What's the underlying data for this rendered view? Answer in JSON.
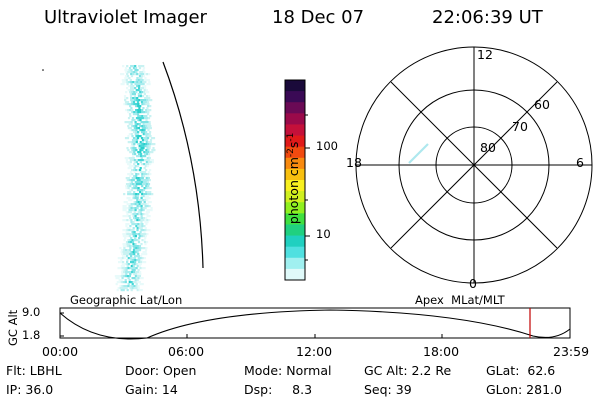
{
  "header": {
    "instrument": "Ultraviolet Imager",
    "date": "18 Dec 07",
    "time": "22:06:39 UT"
  },
  "geo_panel": {
    "label": "Geographic Lat/Lon"
  },
  "colorbar": {
    "unit_label_base": "photon cm",
    "unit_sup_1": "-2",
    "unit_mid": "s",
    "unit_sup_2": "-1",
    "ticks": [
      "100",
      "10"
    ],
    "colors_top_to_bottom": [
      "#1a0a3a",
      "#3a0a55",
      "#6a0a55",
      "#9a0a4a",
      "#c4103a",
      "#e01a1a",
      "#f04a10",
      "#f88a10",
      "#f8c010",
      "#f8f020",
      "#d0f020",
      "#90f020",
      "#40e040",
      "#20d080",
      "#20d0c0",
      "#50e0e0",
      "#a0f0f0",
      "#e0fafa"
    ]
  },
  "polar": {
    "label": "Apex  MLat/MLT",
    "mlt_labels": {
      "top": "12",
      "right": "6",
      "bottom": "0",
      "left": "18"
    },
    "lat_labels": [
      "60",
      "70",
      "80"
    ]
  },
  "timeline": {
    "yaxis_label": "GC Alt",
    "ytick_top": "9.0",
    "ytick_bottom": "1.8",
    "xticks": [
      "00:00",
      "06:00",
      "12:00",
      "18:00",
      "23:59"
    ],
    "current_time_marker_color": "#c00000"
  },
  "info": {
    "col1": [
      "Flt: LBHL",
      "IP: 36.0"
    ],
    "col2": [
      "Door: Open",
      "Gain: 14"
    ],
    "col3": [
      "Mode: Normal",
      "Dsp:     8.3"
    ],
    "col4": [
      "GC Alt: 2.2 Re",
      "Seq: 39"
    ],
    "col5": [
      "GLat:  62.6",
      "GLon: 281.0"
    ]
  }
}
